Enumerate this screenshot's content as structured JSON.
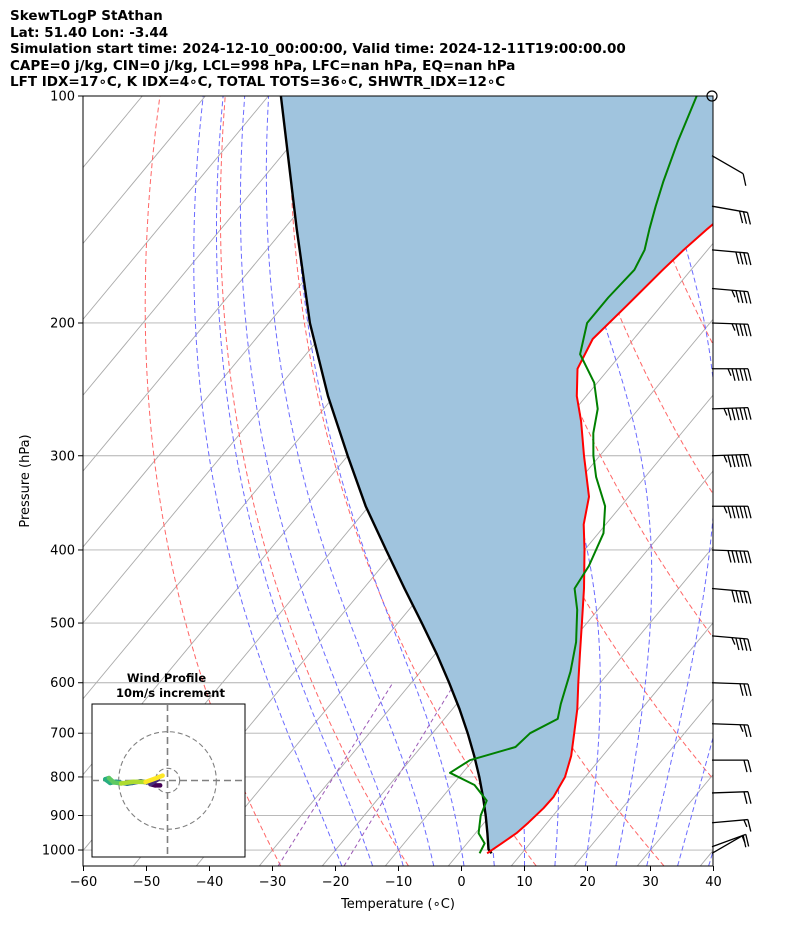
{
  "header": {
    "line1": "SkewTLogP StAthan",
    "line2": "Lat: 51.40   Lon: -3.44",
    "line3": "Simulation start time: 2024-12-10_00:00:00, Valid time: 2024-12-11T19:00:00.00",
    "line4": "CAPE=0 j/kg, CIN=0 j/kg, LCL=998 hPa, LFC=nan hPa, EQ=nan hPa",
    "line5": "LFT IDX=17∘C, K IDX=4∘C, TOTAL TOTS=36∘C, SHWTR_IDX=12∘C"
  },
  "chart_data": [
    {
      "type": "skew-t log-p",
      "xlabel": "Temperature (∘C)",
      "ylabel": "Pressure (hPa)",
      "xlim": [
        -60,
        40
      ],
      "ylim": [
        1050,
        100
      ],
      "x_ticks": [
        -60,
        -50,
        -40,
        -30,
        -20,
        -10,
        0,
        10,
        20,
        30,
        40
      ],
      "x_tick_labels": [
        "−60",
        "−50",
        "−40",
        "−30",
        "−20",
        "−10",
        "0",
        "10",
        "20",
        "30",
        "40"
      ],
      "y_ticks": [
        100,
        200,
        300,
        400,
        500,
        600,
        700,
        800,
        900,
        1000
      ],
      "y_scale": "log",
      "grid": true,
      "colors": {
        "temperature": "#ff0000",
        "dewpoint": "#008000",
        "parcel": "#000000",
        "cape_fill": "#a0c4de",
        "dry_adiabats": "#ff6666",
        "moist_adiabats": "#6b6bff",
        "mixing_ratio": "#9b59b6",
        "isotherms": "#aaaaaa"
      },
      "series": [
        {
          "id": "temperature",
          "values": [
            {
              "p": 1010,
              "t": 4.5
            },
            {
              "p": 980,
              "t": 5.5
            },
            {
              "p": 950,
              "t": 6.5
            },
            {
              "p": 920,
              "t": 7.0
            },
            {
              "p": 880,
              "t": 7.5
            },
            {
              "p": 850,
              "t": 7.6
            },
            {
              "p": 800,
              "t": 6.8
            },
            {
              "p": 750,
              "t": 5.0
            },
            {
              "p": 700,
              "t": 2.5
            },
            {
              "p": 650,
              "t": -0.2
            },
            {
              "p": 600,
              "t": -3.5
            },
            {
              "p": 550,
              "t": -7.0
            },
            {
              "p": 500,
              "t": -10.8
            },
            {
              "p": 450,
              "t": -15.0
            },
            {
              "p": 400,
              "t": -20.0
            },
            {
              "p": 370,
              "t": -23.5
            },
            {
              "p": 340,
              "t": -26.3
            },
            {
              "p": 300,
              "t": -32.5
            },
            {
              "p": 270,
              "t": -37.5
            },
            {
              "p": 250,
              "t": -41.5
            },
            {
              "p": 230,
              "t": -45.0
            },
            {
              "p": 210,
              "t": -46.5
            },
            {
              "p": 190,
              "t": -45.5
            },
            {
              "p": 170,
              "t": -44.5
            },
            {
              "p": 160,
              "t": -43.8
            },
            {
              "p": 150,
              "t": -42.8
            },
            {
              "p": 140,
              "t": -41.5
            },
            {
              "p": 130,
              "t": -40.0
            },
            {
              "p": 120,
              "t": -38.0
            },
            {
              "p": 115,
              "t": -37.5
            },
            {
              "p": 108,
              "t": -36.0
            },
            {
              "p": 100,
              "t": -34.5
            }
          ]
        },
        {
          "id": "dewpoint",
          "values": [
            {
              "p": 1010,
              "t": 3.3
            },
            {
              "p": 980,
              "t": 2.8
            },
            {
              "p": 950,
              "t": 0.5
            },
            {
              "p": 900,
              "t": -1.5
            },
            {
              "p": 860,
              "t": -2.5
            },
            {
              "p": 820,
              "t": -6.5
            },
            {
              "p": 790,
              "t": -12.0
            },
            {
              "p": 760,
              "t": -10.5
            },
            {
              "p": 730,
              "t": -5.0
            },
            {
              "p": 700,
              "t": -4.5
            },
            {
              "p": 670,
              "t": -2.0
            },
            {
              "p": 640,
              "t": -3.5
            },
            {
              "p": 580,
              "t": -6.2
            },
            {
              "p": 530,
              "t": -9.2
            },
            {
              "p": 480,
              "t": -13.3
            },
            {
              "p": 450,
              "t": -16.5
            },
            {
              "p": 420,
              "t": -17.2
            },
            {
              "p": 380,
              "t": -19.2
            },
            {
              "p": 350,
              "t": -22.5
            },
            {
              "p": 320,
              "t": -27.8
            },
            {
              "p": 300,
              "t": -31.0
            },
            {
              "p": 280,
              "t": -34.0
            },
            {
              "p": 260,
              "t": -36.5
            },
            {
              "p": 240,
              "t": -40.5
            },
            {
              "p": 220,
              "t": -46.5
            },
            {
              "p": 200,
              "t": -49.5
            },
            {
              "p": 185,
              "t": -49.5
            },
            {
              "p": 170,
              "t": -49.0
            },
            {
              "p": 160,
              "t": -50.0
            },
            {
              "p": 150,
              "t": -52.0
            },
            {
              "p": 140,
              "t": -54.0
            },
            {
              "p": 130,
              "t": -56.0
            },
            {
              "p": 115,
              "t": -59.0
            },
            {
              "p": 100,
              "t": -62.0
            }
          ]
        },
        {
          "id": "parcel",
          "values": [
            {
              "p": 1010,
              "t": 5.2
            },
            {
              "p": 998,
              "t": 4.2
            },
            {
              "p": 950,
              "t": 1.9
            },
            {
              "p": 900,
              "t": -0.7
            },
            {
              "p": 850,
              "t": -3.6
            },
            {
              "p": 800,
              "t": -6.8
            },
            {
              "p": 750,
              "t": -10.4
            },
            {
              "p": 700,
              "t": -14.4
            },
            {
              "p": 650,
              "t": -18.9
            },
            {
              "p": 600,
              "t": -24.0
            },
            {
              "p": 550,
              "t": -29.7
            },
            {
              "p": 500,
              "t": -36.2
            },
            {
              "p": 450,
              "t": -43.5
            },
            {
              "p": 400,
              "t": -51.5
            },
            {
              "p": 350,
              "t": -60.5
            },
            {
              "p": 300,
              "t": -70.0
            },
            {
              "p": 250,
              "t": -81.0
            },
            {
              "p": 200,
              "t": -93.5
            },
            {
              "p": 150,
              "t": -108.0
            },
            {
              "p": 100,
              "t": -128.0
            }
          ]
        }
      ],
      "wind_barbs": [
        {
          "p": 100,
          "speed_kt": 0,
          "direction_deg": 0
        },
        {
          "p": 120,
          "speed_kt": 10,
          "direction_deg": 240
        },
        {
          "p": 140,
          "speed_kt": 30,
          "direction_deg": 260
        },
        {
          "p": 160,
          "speed_kt": 40,
          "direction_deg": 265
        },
        {
          "p": 180,
          "speed_kt": 45,
          "direction_deg": 265
        },
        {
          "p": 200,
          "speed_kt": 45,
          "direction_deg": 268
        },
        {
          "p": 230,
          "speed_kt": 55,
          "direction_deg": 270
        },
        {
          "p": 260,
          "speed_kt": 65,
          "direction_deg": 272
        },
        {
          "p": 300,
          "speed_kt": 65,
          "direction_deg": 272
        },
        {
          "p": 350,
          "speed_kt": 65,
          "direction_deg": 270
        },
        {
          "p": 400,
          "speed_kt": 60,
          "direction_deg": 268
        },
        {
          "p": 450,
          "speed_kt": 50,
          "direction_deg": 265
        },
        {
          "p": 520,
          "speed_kt": 45,
          "direction_deg": 265
        },
        {
          "p": 600,
          "speed_kt": 30,
          "direction_deg": 268
        },
        {
          "p": 680,
          "speed_kt": 25,
          "direction_deg": 268
        },
        {
          "p": 760,
          "speed_kt": 20,
          "direction_deg": 270
        },
        {
          "p": 840,
          "speed_kt": 20,
          "direction_deg": 272
        },
        {
          "p": 920,
          "speed_kt": 15,
          "direction_deg": 275
        },
        {
          "p": 990,
          "speed_kt": 15,
          "direction_deg": 290
        },
        {
          "p": 1010,
          "speed_kt": 10,
          "direction_deg": 300
        }
      ]
    },
    {
      "type": "hodograph",
      "title": "Wind Profile",
      "subtitle": "10m/s increment",
      "ring_step_ms": 10,
      "colormap": "viridis",
      "points": [
        {
          "u": -3.0,
          "v": -2.0
        },
        {
          "u": -5.0,
          "v": -2.0
        },
        {
          "u": -7.0,
          "v": -1.5
        },
        {
          "u": -4.0,
          "v": 0.5
        },
        {
          "u": -8.5,
          "v": -0.8
        },
        {
          "u": -11.0,
          "v": -0.3
        },
        {
          "u": -14.5,
          "v": -1.0
        },
        {
          "u": -16.5,
          "v": -1.3
        },
        {
          "u": -19.0,
          "v": -1.0
        },
        {
          "u": -21.0,
          "v": -0.5
        },
        {
          "u": -23.5,
          "v": -1.0
        },
        {
          "u": -25.5,
          "v": 0.5
        },
        {
          "u": -24.0,
          "v": 1.0
        },
        {
          "u": -22.0,
          "v": -0.8
        },
        {
          "u": -19.0,
          "v": -1.2
        },
        {
          "u": -14.0,
          "v": -0.5
        },
        {
          "u": -9.0,
          "v": -0.6
        },
        {
          "u": -4.0,
          "v": 1.2
        },
        {
          "u": -2.0,
          "v": 2.0
        }
      ]
    }
  ]
}
